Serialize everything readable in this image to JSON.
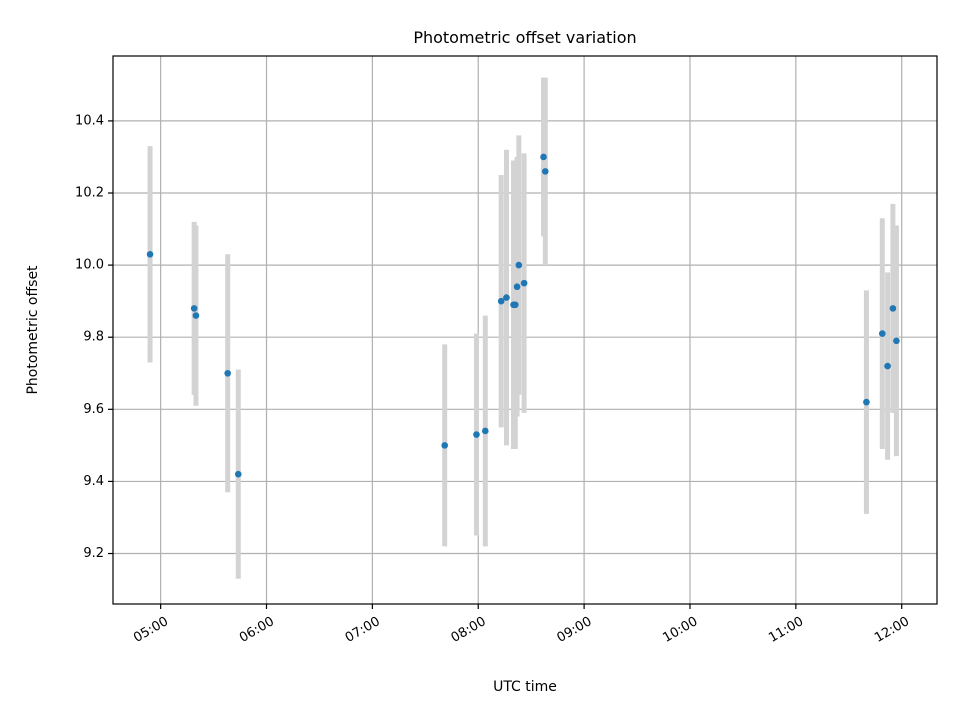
{
  "chart_data": {
    "type": "scatter",
    "title": "Photometric offset variation",
    "xlabel": "UTC time",
    "ylabel": "Photometric offset",
    "x_unit": "UTC time (HH:MM)",
    "xlim": [
      "04:33",
      "12:20"
    ],
    "ylim": [
      9.06,
      10.58
    ],
    "xticks": [
      "05:00",
      "06:00",
      "07:00",
      "08:00",
      "09:00",
      "10:00",
      "11:00",
      "12:00"
    ],
    "yticks": [
      "9.2",
      "9.4",
      "9.6",
      "9.8",
      "10.0",
      "10.2",
      "10.4"
    ],
    "grid": true,
    "point_color": "#1f77b4",
    "errorbar_color": "#d3d3d3",
    "points": [
      {
        "x": "04:54",
        "y": 10.03,
        "err": 0.3
      },
      {
        "x": "05:19",
        "y": 9.88,
        "err": 0.24
      },
      {
        "x": "05:20",
        "y": 9.86,
        "err": 0.25
      },
      {
        "x": "05:38",
        "y": 9.7,
        "err": 0.33
      },
      {
        "x": "05:44",
        "y": 9.42,
        "err": 0.29
      },
      {
        "x": "07:41",
        "y": 9.5,
        "err": 0.28
      },
      {
        "x": "07:59",
        "y": 9.53,
        "err": 0.28
      },
      {
        "x": "08:04",
        "y": 9.54,
        "err": 0.32
      },
      {
        "x": "08:13",
        "y": 9.9,
        "err": 0.35
      },
      {
        "x": "08:16",
        "y": 9.91,
        "err": 0.41
      },
      {
        "x": "08:20",
        "y": 9.89,
        "err": 0.4
      },
      {
        "x": "08:21",
        "y": 9.89,
        "err": 0.4
      },
      {
        "x": "08:22",
        "y": 9.94,
        "err": 0.36
      },
      {
        "x": "08:23",
        "y": 10.0,
        "err": 0.36
      },
      {
        "x": "08:26",
        "y": 9.95,
        "err": 0.36
      },
      {
        "x": "08:37",
        "y": 10.3,
        "err": 0.22
      },
      {
        "x": "08:38",
        "y": 10.26,
        "err": 0.26
      },
      {
        "x": "11:40",
        "y": 9.62,
        "err": 0.31
      },
      {
        "x": "11:49",
        "y": 9.81,
        "err": 0.32
      },
      {
        "x": "11:52",
        "y": 9.72,
        "err": 0.26
      },
      {
        "x": "11:55",
        "y": 9.88,
        "err": 0.29
      },
      {
        "x": "11:57",
        "y": 9.79,
        "err": 0.32
      }
    ]
  }
}
